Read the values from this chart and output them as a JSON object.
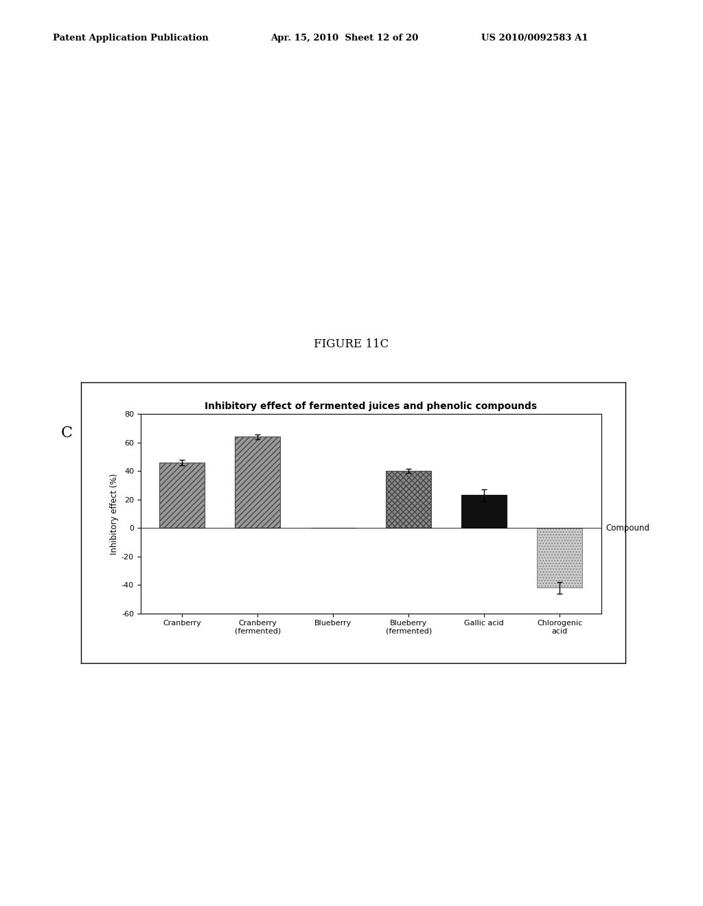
{
  "title": "Inhibitory effect of fermented juices and phenolic compounds",
  "xlabel": "Compound",
  "ylabel": "Inhibitory effect (%)",
  "categories": [
    "Cranberry",
    "Cranberry\n(fermented)",
    "Blueberry",
    "Blueberry\n(fermented)",
    "Gallic acid",
    "Chlorogenic\nacid"
  ],
  "values": [
    46,
    64,
    0,
    40,
    23,
    -42
  ],
  "errors": [
    2,
    1.5,
    0,
    1.5,
    4,
    4
  ],
  "ylim": [
    -60,
    80
  ],
  "yticks": [
    -60,
    -40,
    -20,
    0,
    20,
    40,
    60,
    80
  ],
  "figure_label": "C",
  "figure_title": "FIGURE 11C",
  "bg_color": "#ffffff",
  "hatch_patterns": [
    "////",
    "////",
    "",
    "xxxx",
    "",
    "...."
  ],
  "bar_edge_colors": [
    "#444444",
    "#444444",
    "#444444",
    "#444444",
    "#111111",
    "#888888"
  ],
  "bar_face_colors": [
    "#999999",
    "#999999",
    "#ffffff",
    "#888888",
    "#111111",
    "#cccccc"
  ]
}
